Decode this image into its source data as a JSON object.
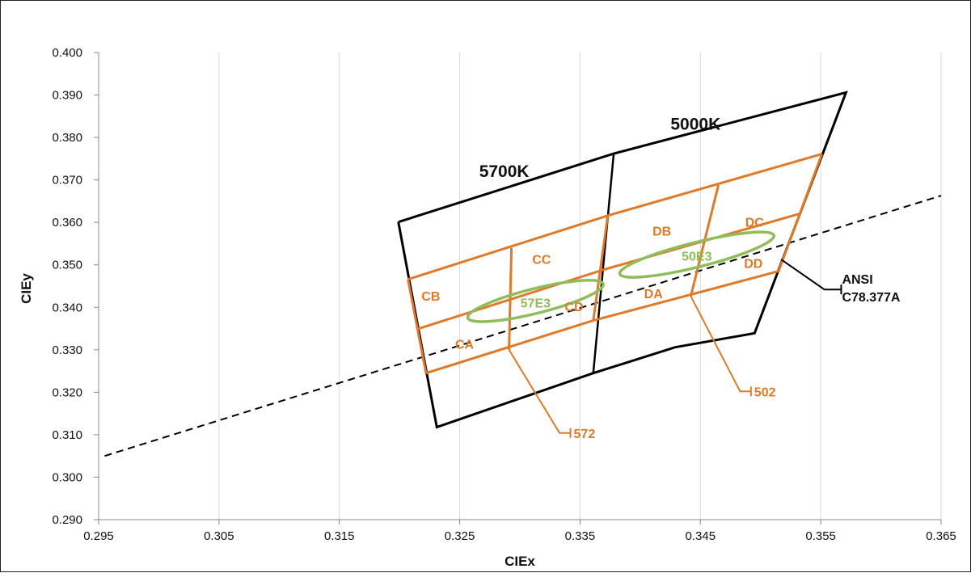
{
  "chart_data": {
    "type": "scatter",
    "title": "",
    "xlabel": "CIEx",
    "ylabel": "CIEy",
    "xlim": [
      0.295,
      0.365
    ],
    "ylim": [
      0.29,
      0.4
    ],
    "x_ticks": [
      "0.295",
      "0.305",
      "0.315",
      "0.325",
      "0.335",
      "0.345",
      "0.355",
      "0.365"
    ],
    "y_ticks": [
      "0.290",
      "0.300",
      "0.310",
      "0.320",
      "0.330",
      "0.340",
      "0.350",
      "0.360",
      "0.370",
      "0.380",
      "0.390",
      "0.400"
    ],
    "grid": "vertical",
    "colors": {
      "outline": "#000000",
      "bins": "#e07a26",
      "ellipses": "#8fbd5a",
      "reference": "#000000"
    },
    "black_outline": {
      "points": [
        [
          0.3199,
          0.3601
        ],
        [
          0.3378,
          0.3762
        ],
        [
          0.3571,
          0.3906
        ],
        [
          0.3495,
          0.3339
        ],
        [
          0.3429,
          0.3306
        ],
        [
          0.3361,
          0.3245
        ],
        [
          0.3231,
          0.3118
        ],
        [
          0.3199,
          0.3601
        ]
      ],
      "divider": [
        [
          0.3378,
          0.3762
        ],
        [
          0.3361,
          0.3245
        ]
      ]
    },
    "reference_line": {
      "label": "ANSI C78.377A",
      "points": [
        [
          0.2955,
          0.305
        ],
        [
          0.365,
          0.3663
        ]
      ]
    },
    "orange_grid": {
      "rows": [
        [
          [
            0.3207,
            0.3466
          ],
          [
            0.3373,
            0.3616
          ],
          [
            0.3551,
            0.3761
          ]
        ],
        [
          [
            0.3215,
            0.3349
          ],
          [
            0.337,
            0.3489
          ],
          [
            0.3532,
            0.362
          ]
        ],
        [
          [
            0.3222,
            0.3245
          ],
          [
            0.3361,
            0.3369
          ],
          [
            0.3515,
            0.3485
          ]
        ]
      ],
      "columns": [
        [
          [
            0.3207,
            0.3466
          ],
          [
            0.3222,
            0.3245
          ]
        ],
        [
          [
            0.3293,
            0.354
          ],
          [
            0.3291,
            0.33
          ]
        ],
        [
          [
            0.3373,
            0.3616
          ],
          [
            0.3361,
            0.3369
          ]
        ],
        [
          [
            0.3465,
            0.3688
          ],
          [
            0.3442,
            0.3426
          ]
        ],
        [
          [
            0.3551,
            0.3761
          ],
          [
            0.3515,
            0.3485
          ]
        ]
      ]
    },
    "ellipses": [
      {
        "name": "57E3",
        "center": [
          0.3313,
          0.3415
        ],
        "semi_axes": [
          0.0058,
          0.0029
        ],
        "angle_deg": -14
      },
      {
        "name": "50E3",
        "center": [
          0.3447,
          0.3524
        ],
        "semi_axes": [
          0.0066,
          0.0029
        ],
        "angle_deg": -14
      }
    ],
    "callouts": [
      {
        "label": "572",
        "from": [
          0.3291,
          0.33
        ],
        "elbow": [
          0.3333,
          0.3104
        ],
        "to": [
          0.3342,
          0.3104
        ]
      },
      {
        "label": "502",
        "from": [
          0.3442,
          0.3426
        ],
        "elbow": [
          0.3483,
          0.3202
        ],
        "to": [
          0.3492,
          0.3202
        ]
      },
      {
        "label": "ANSI C78.377A",
        "from": [
          0.3517,
          0.3513
        ],
        "elbow": [
          0.3553,
          0.3442
        ],
        "to": [
          0.3567,
          0.3442
        ]
      }
    ],
    "annotations": [
      {
        "text": "5700K",
        "at": [
          0.3287,
          0.3718
        ],
        "color": "black"
      },
      {
        "text": "5000K",
        "at": [
          0.3446,
          0.383
        ],
        "color": "black"
      },
      {
        "text": "CB",
        "at": [
          0.3226,
          0.3427
        ],
        "color": "orange"
      },
      {
        "text": "CA",
        "at": [
          0.3254,
          0.3314
        ],
        "color": "orange"
      },
      {
        "text": "CC",
        "at": [
          0.3318,
          0.3514
        ],
        "color": "orange"
      },
      {
        "text": "CD",
        "at": [
          0.3345,
          0.3402
        ],
        "color": "orange"
      },
      {
        "text": "DB",
        "at": [
          0.3418,
          0.358
        ],
        "color": "orange"
      },
      {
        "text": "DA",
        "at": [
          0.3411,
          0.3433
        ],
        "color": "orange"
      },
      {
        "text": "DC",
        "at": [
          0.3495,
          0.3601
        ],
        "color": "orange"
      },
      {
        "text": "DD",
        "at": [
          0.3494,
          0.3504
        ],
        "color": "orange"
      },
      {
        "text": "57E3",
        "at": [
          0.3313,
          0.3411
        ],
        "color": "green"
      },
      {
        "text": "50E3",
        "at": [
          0.3447,
          0.3521
        ],
        "color": "green"
      }
    ]
  }
}
